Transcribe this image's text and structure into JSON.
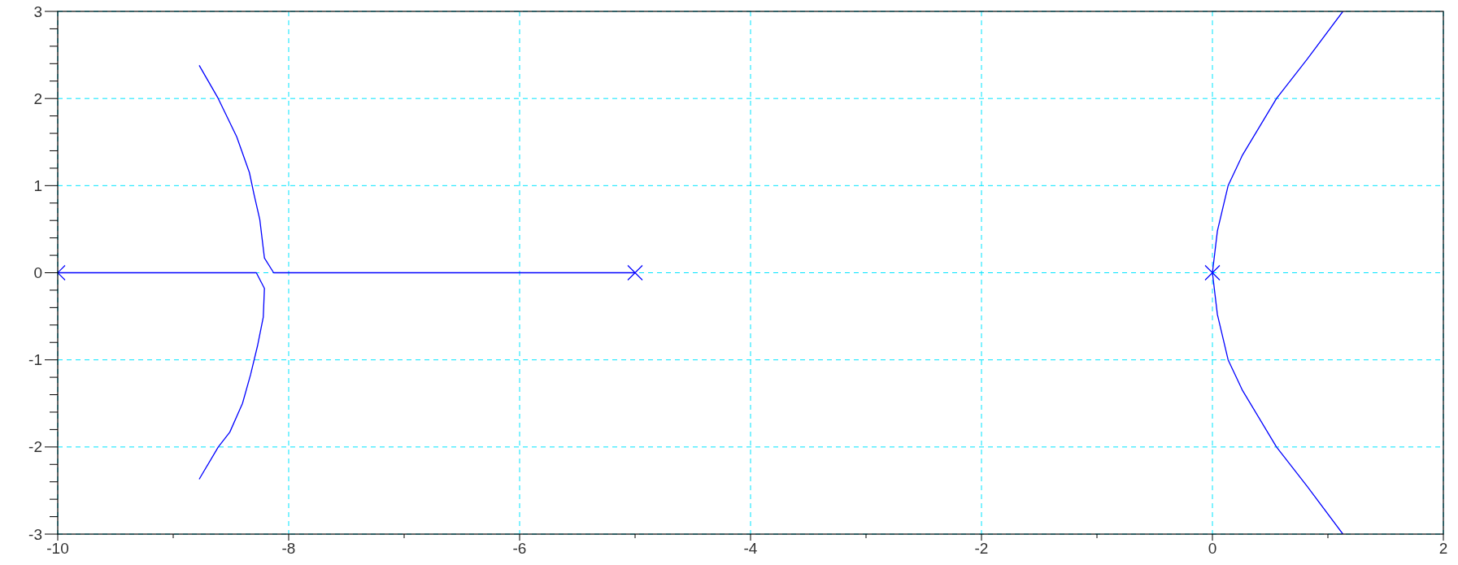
{
  "chart_data": {
    "type": "line",
    "xlim": [
      -10,
      2
    ],
    "ylim": [
      -3,
      3
    ],
    "xticks": [
      -10,
      {
        "value": -9,
        "label": null
      },
      -8,
      {
        "value": -7,
        "label": null
      },
      -6,
      {
        "value": -5,
        "label": null
      },
      -4,
      {
        "value": -3,
        "label": null
      },
      -2,
      {
        "value": -1,
        "label": null
      },
      0,
      {
        "value": 1,
        "label": null
      },
      2
    ],
    "yticks": [
      -3,
      {
        "value": -2.8,
        "label": null
      },
      {
        "value": -2.6,
        "label": null
      },
      {
        "value": -2.4,
        "label": null
      },
      {
        "value": -2.2,
        "label": null
      },
      -2,
      {
        "value": -1.8,
        "label": null
      },
      {
        "value": -1.6,
        "label": null
      },
      {
        "value": -1.4,
        "label": null
      },
      {
        "value": -1.2,
        "label": null
      },
      -1,
      {
        "value": -0.8,
        "label": null
      },
      {
        "value": -0.6,
        "label": null
      },
      {
        "value": -0.4,
        "label": null
      },
      {
        "value": -0.2,
        "label": null
      },
      0,
      {
        "value": 0.2,
        "label": null
      },
      {
        "value": 0.4,
        "label": null
      },
      {
        "value": 0.6,
        "label": null
      },
      {
        "value": 0.8,
        "label": null
      },
      1,
      {
        "value": 1.2,
        "label": null
      },
      {
        "value": 1.4,
        "label": null
      },
      {
        "value": 1.6,
        "label": null
      },
      {
        "value": 1.8,
        "label": null
      },
      2,
      {
        "value": 2.2,
        "label": null
      },
      {
        "value": 2.4,
        "label": null
      },
      {
        "value": 2.6,
        "label": null
      },
      {
        "value": 2.8,
        "label": null
      },
      3
    ],
    "grid": true,
    "line_style": "solid",
    "series": [
      {
        "color": "#0000ff",
        "x": [
          -10,
          -8.28,
          -8.21,
          -8.22,
          -8.27,
          -8.33,
          -8.4,
          -8.51,
          -8.61,
          -8.775
        ],
        "values": [
          0,
          0,
          -0.18,
          -0.51,
          -0.84,
          -1.17,
          -1.5,
          -1.83,
          -2.0,
          -2.37
        ]
      },
      {
        "color": "#0000ff",
        "x": [
          -5,
          -8.13,
          -8.21,
          -8.25,
          -8.3,
          -8.34,
          -8.45,
          -8.61,
          -8.775
        ],
        "values": [
          0,
          0,
          0.17,
          0.61,
          0.9,
          1.15,
          1.56,
          2.0,
          2.38
        ]
      },
      {
        "color": "#0000ff",
        "x": [
          1.13,
          0.82,
          0.555,
          0.26,
          0.136,
          0.043,
          0,
          0.043,
          0.136,
          0.26,
          0.555,
          0.82,
          1.13
        ],
        "values": [
          -3,
          -2.45,
          -2,
          -1.35,
          -1,
          -0.48,
          0,
          0.48,
          1,
          1.35,
          2,
          2.45,
          3
        ]
      },
      {
        "type": "scatter",
        "marker": "cross",
        "color": "#0000ff",
        "x": [
          -10,
          -5,
          0
        ],
        "values": [
          0,
          0,
          0
        ]
      }
    ]
  }
}
